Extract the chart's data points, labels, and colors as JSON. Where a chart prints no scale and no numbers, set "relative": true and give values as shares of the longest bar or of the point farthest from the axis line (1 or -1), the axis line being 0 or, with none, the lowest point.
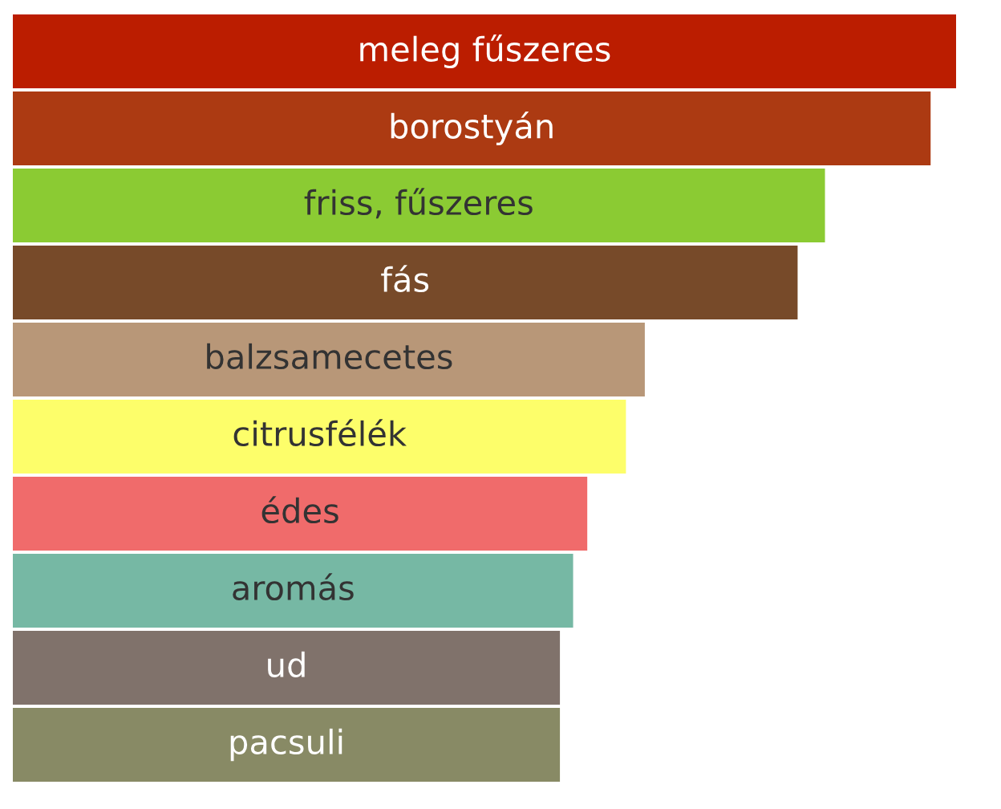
{
  "chart_data": {
    "type": "bar",
    "orientation": "horizontal",
    "relative": true,
    "categories": [
      "meleg fűszeres",
      "borostyán",
      "friss, fűszeres",
      "fás",
      "balzsamecetes",
      "citrusfélék",
      "édes",
      "aromás",
      "ud",
      "pacsuli"
    ],
    "values": [
      1,
      0.973,
      0.861,
      0.832,
      0.67,
      0.65,
      0.609,
      0.594,
      0.58,
      0.58
    ],
    "colors": [
      "#bb1d00",
      "#ac3a12",
      "#8bcb33",
      "#774a29",
      "#b89778",
      "#fdfe6a",
      "#f06b6b",
      "#76b8a4",
      "#80726b",
      "#888a65"
    ]
  }
}
